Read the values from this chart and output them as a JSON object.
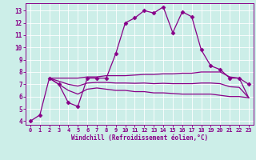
{
  "xlabel": "Windchill (Refroidissement éolien,°C)",
  "xlim": [
    -0.5,
    23.5
  ],
  "ylim": [
    3.7,
    13.6
  ],
  "yticks": [
    4,
    5,
    6,
    7,
    8,
    9,
    10,
    11,
    12,
    13
  ],
  "xticks": [
    0,
    1,
    2,
    3,
    4,
    5,
    6,
    7,
    8,
    9,
    10,
    11,
    12,
    13,
    14,
    15,
    16,
    17,
    18,
    19,
    20,
    21,
    22,
    23
  ],
  "bg_color": "#cceee8",
  "line_color": "#880088",
  "grid_color": "#ffffff",
  "series": [
    {
      "x": [
        0,
        1,
        2,
        3,
        4,
        5,
        6,
        7,
        8,
        9,
        10,
        11,
        12,
        13,
        14,
        15,
        16,
        17,
        18,
        19,
        20,
        21,
        22,
        23
      ],
      "y": [
        4.0,
        4.5,
        7.5,
        7.0,
        5.5,
        5.2,
        7.5,
        7.5,
        7.5,
        9.5,
        12.0,
        12.4,
        13.0,
        12.8,
        13.3,
        11.2,
        12.9,
        12.5,
        9.8,
        8.5,
        8.2,
        7.5,
        7.5,
        7.0
      ],
      "marker": "D",
      "markersize": 2.5,
      "linewidth": 0.9
    },
    {
      "x": [
        2,
        3,
        4,
        5,
        6,
        7,
        8,
        9,
        10,
        11,
        12,
        13,
        14,
        15,
        16,
        17,
        18,
        19,
        20,
        21,
        22,
        23
      ],
      "y": [
        7.5,
        7.5,
        7.5,
        7.5,
        7.6,
        7.6,
        7.7,
        7.7,
        7.7,
        7.75,
        7.8,
        7.8,
        7.85,
        7.85,
        7.9,
        7.9,
        8.0,
        8.0,
        8.0,
        7.6,
        7.5,
        5.9
      ],
      "marker": null,
      "markersize": 0,
      "linewidth": 0.9
    },
    {
      "x": [
        2,
        3,
        4,
        5,
        6,
        7,
        8,
        9,
        10,
        11,
        12,
        13,
        14,
        15,
        16,
        17,
        18,
        19,
        20,
        21,
        22,
        23
      ],
      "y": [
        7.5,
        7.0,
        6.5,
        6.2,
        6.6,
        6.7,
        6.6,
        6.5,
        6.5,
        6.4,
        6.4,
        6.3,
        6.3,
        6.25,
        6.2,
        6.2,
        6.2,
        6.2,
        6.1,
        6.0,
        6.0,
        5.9
      ],
      "marker": null,
      "markersize": 0,
      "linewidth": 0.9
    },
    {
      "x": [
        2,
        3,
        4,
        5,
        6,
        7,
        8,
        9,
        10,
        11,
        12,
        13,
        14,
        15,
        16,
        17,
        18,
        19,
        20,
        21,
        22,
        23
      ],
      "y": [
        7.5,
        7.25,
        7.0,
        6.85,
        7.1,
        7.15,
        7.15,
        7.1,
        7.1,
        7.08,
        7.1,
        7.05,
        7.08,
        7.05,
        7.05,
        7.05,
        7.1,
        7.1,
        7.05,
        6.8,
        6.75,
        5.9
      ],
      "marker": null,
      "markersize": 0,
      "linewidth": 0.9
    }
  ]
}
